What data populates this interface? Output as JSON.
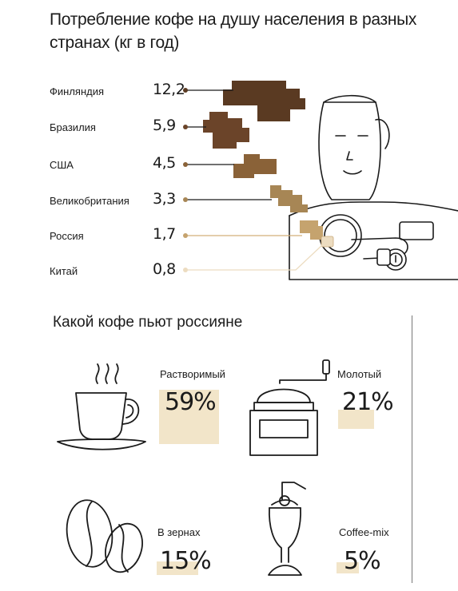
{
  "title_line1": "Потребление кофе на душу населения в разных",
  "title_line2": "странах (кг в год)",
  "chart_data": [
    {
      "type": "bar",
      "title": "Потребление кофе на душу населения в разных странах (кг в год)",
      "categories": [
        "Финляндия",
        "Бразилия",
        "США",
        "Великобритания",
        "Россия",
        "Китай"
      ],
      "values": [
        12.2,
        5.9,
        4.5,
        3.3,
        1.7,
        0.8
      ],
      "value_labels": [
        "12,2",
        "5,9",
        "4,5",
        "3,3",
        "1,7",
        "0,8"
      ],
      "colors": [
        "#5a3a22",
        "#6b4429",
        "#8a6238",
        "#a78655",
        "#c5a36e",
        "#ecdcc0"
      ]
    },
    {
      "type": "pie",
      "title": "Какой кофе пьют россияне",
      "categories": [
        "Растворимый",
        "Молотый",
        "В зернах",
        "Coffee-mix"
      ],
      "values": [
        59,
        21,
        15,
        5
      ],
      "value_labels": [
        "59%",
        "21%",
        "15%",
        "5%"
      ]
    }
  ],
  "colors": {
    "accent_bg": "#f2e5c9",
    "line": "#1b1b1b"
  },
  "icons": [
    "man-with-cup-illustration",
    "coffee-cup-icon",
    "coffee-grinder-icon",
    "coffee-beans-icon",
    "milkshake-glass-icon"
  ]
}
